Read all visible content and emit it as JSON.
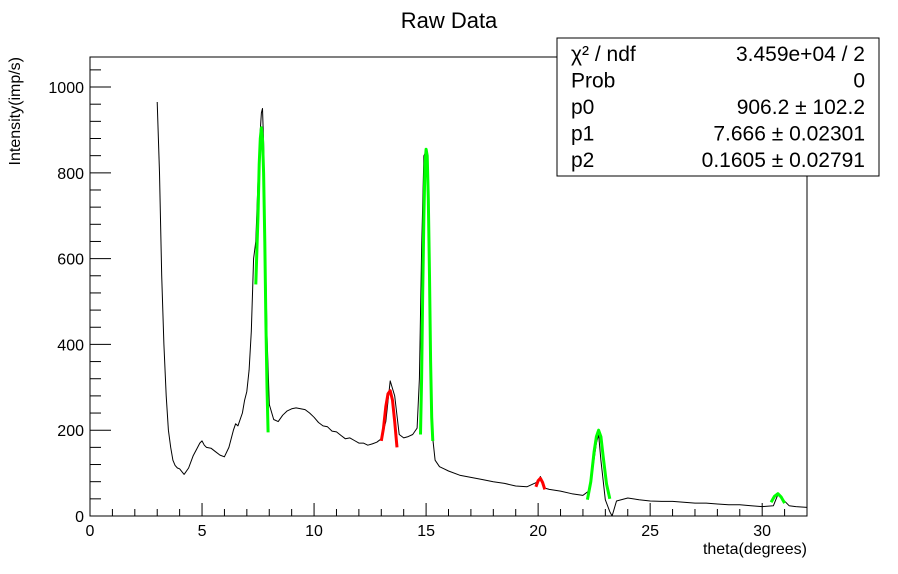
{
  "chart_data": {
    "type": "line",
    "title": "Raw Data",
    "xlabel": "theta(degrees)",
    "ylabel": "Intensity(imp/s)",
    "xlim": [
      0,
      32
    ],
    "ylim": [
      0,
      1070
    ],
    "x_ticks": [
      0,
      5,
      10,
      15,
      20,
      25,
      30
    ],
    "y_ticks": [
      0,
      200,
      400,
      600,
      800,
      1000
    ],
    "grid": false,
    "stats_box": {
      "placement": "top-right",
      "rows": [
        {
          "label": "χ² / ndf",
          "value": "3.459e+04 / 2"
        },
        {
          "label": "Prob",
          "value": "0"
        },
        {
          "label": "p0",
          "value": "906.2 ± 102.2"
        },
        {
          "label": "p1",
          "value": "7.666 ± 0.02301"
        },
        {
          "label": "p2",
          "value": "0.1605 ± 0.02791"
        }
      ]
    },
    "series": [
      {
        "color": "#000000",
        "x": [
          3.0,
          3.1,
          3.2,
          3.3,
          3.4,
          3.5,
          3.6,
          3.7,
          3.8,
          3.9,
          4.0,
          4.2,
          4.4,
          4.6,
          4.8,
          4.9,
          5.0,
          5.1,
          5.2,
          5.4,
          5.6,
          5.8,
          6.0,
          6.2,
          6.4,
          6.5,
          6.6,
          6.8,
          6.9,
          7.0,
          7.1,
          7.2,
          7.3,
          7.4,
          7.5,
          7.6,
          7.65,
          7.7,
          7.75,
          7.8,
          7.9,
          8.0,
          8.2,
          8.4,
          8.6,
          8.8,
          9.0,
          9.2,
          9.4,
          9.6,
          9.8,
          10.0,
          10.2,
          10.4,
          10.6,
          10.8,
          11.0,
          11.2,
          11.4,
          11.6,
          11.8,
          12.0,
          12.2,
          12.4,
          12.6,
          12.8,
          13.0,
          13.2,
          13.4,
          13.6,
          13.8,
          14.0,
          14.2,
          14.4,
          14.6,
          14.7,
          14.8,
          14.9,
          15.0,
          15.1,
          15.2,
          15.3,
          15.4,
          15.6,
          15.8,
          16.0,
          16.5,
          17.0,
          17.5,
          18.0,
          18.5,
          19.0,
          19.5,
          20.0,
          20.1,
          20.2,
          20.3,
          20.5,
          21.0,
          21.5,
          22.0,
          22.3,
          22.6,
          22.7,
          22.8,
          23.0,
          23.2,
          23.3,
          23.5,
          24.0,
          24.5,
          25.0,
          25.5,
          26.0,
          26.5,
          27.0,
          27.5,
          28.0,
          28.5,
          29.0,
          29.5,
          30.0,
          30.5,
          30.7,
          30.9,
          31.2,
          31.5,
          32.0
        ],
        "y": [
          965,
          800,
          560,
          400,
          280,
          200,
          160,
          130,
          118,
          112,
          110,
          97,
          112,
          140,
          160,
          170,
          175,
          165,
          160,
          158,
          150,
          142,
          138,
          160,
          200,
          215,
          210,
          240,
          270,
          290,
          340,
          430,
          600,
          640,
          780,
          900,
          940,
          950,
          870,
          700,
          420,
          260,
          225,
          220,
          235,
          245,
          250,
          252,
          250,
          248,
          240,
          230,
          218,
          210,
          208,
          198,
          196,
          188,
          180,
          182,
          176,
          170,
          170,
          165,
          168,
          172,
          180,
          220,
          315,
          280,
          190,
          182,
          185,
          190,
          205,
          320,
          620,
          840,
          850,
          700,
          360,
          180,
          130,
          115,
          110,
          105,
          95,
          90,
          85,
          80,
          76,
          70,
          68,
          80,
          92,
          78,
          65,
          62,
          58,
          52,
          48,
          60,
          170,
          190,
          130,
          38,
          10,
          0,
          35,
          42,
          38,
          35,
          34,
          34,
          32,
          30,
          30,
          28,
          26,
          26,
          24,
          22,
          24,
          50,
          40,
          24,
          22,
          20
        ]
      },
      {
        "color": "#00ff00",
        "x": [
          7.4,
          7.5,
          7.55,
          7.6,
          7.65,
          7.7,
          7.75,
          7.8,
          7.85,
          7.9,
          7.95
        ],
        "y": [
          540,
          700,
          820,
          880,
          905,
          880,
          800,
          640,
          450,
          300,
          195
        ]
      },
      {
        "color": "#ff0000",
        "x": [
          13.0,
          13.1,
          13.2,
          13.3,
          13.4,
          13.5,
          13.6,
          13.7
        ],
        "y": [
          175,
          205,
          255,
          285,
          292,
          270,
          220,
          160
        ]
      },
      {
        "color": "#00ff00",
        "x": [
          14.75,
          14.8,
          14.85,
          14.9,
          14.95,
          15.0,
          15.05,
          15.1,
          15.15,
          15.2,
          15.25,
          15.3
        ],
        "y": [
          190,
          320,
          520,
          700,
          820,
          855,
          840,
          740,
          560,
          360,
          230,
          175
        ]
      },
      {
        "color": "#ff0000",
        "x": [
          19.9,
          20.0,
          20.1,
          20.2,
          20.3
        ],
        "y": [
          68,
          82,
          88,
          78,
          62
        ]
      },
      {
        "color": "#00ff00",
        "x": [
          22.2,
          22.35,
          22.5,
          22.6,
          22.7,
          22.8,
          22.9,
          23.05,
          23.2
        ],
        "y": [
          38,
          80,
          150,
          185,
          200,
          185,
          140,
          75,
          40
        ]
      },
      {
        "color": "#00ff00",
        "x": [
          30.4,
          30.55,
          30.7,
          30.85,
          31.0
        ],
        "y": [
          32,
          46,
          52,
          44,
          30
        ]
      }
    ]
  }
}
